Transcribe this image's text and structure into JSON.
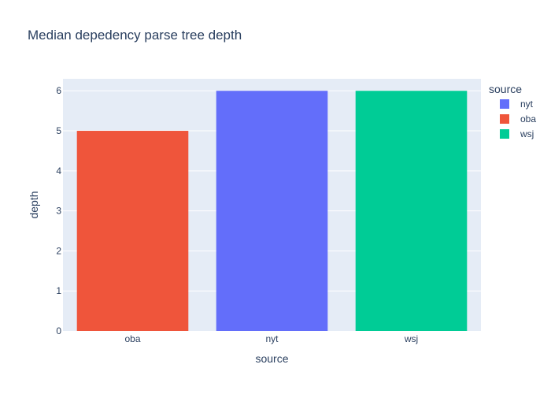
{
  "chart_data": {
    "type": "bar",
    "title": "Median depedency parse tree depth",
    "xlabel": "source",
    "ylabel": "depth",
    "categories": [
      "oba",
      "nyt",
      "wsj"
    ],
    "series": [
      {
        "name": "nyt",
        "color": "#636efa",
        "category": "nyt",
        "value": 6
      },
      {
        "name": "oba",
        "color": "#ef553b",
        "category": "oba",
        "value": 5
      },
      {
        "name": "wsj",
        "color": "#00cc96",
        "category": "wsj",
        "value": 6
      }
    ],
    "ylim": [
      0,
      6.3
    ],
    "yticks": [
      0,
      1,
      2,
      3,
      4,
      5,
      6
    ],
    "grid": true,
    "legend": {
      "title": "source",
      "placement": "right"
    },
    "plot_background": "#e5ecf6"
  }
}
